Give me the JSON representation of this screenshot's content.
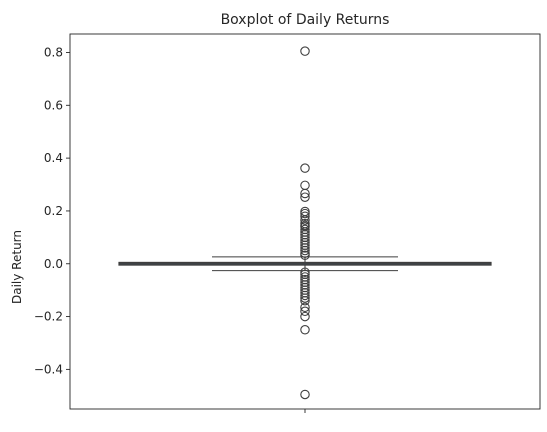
{
  "chart_data": {
    "type": "boxplot",
    "title": "Boxplot of Daily Returns",
    "xlabel": "",
    "ylabel": "Daily Return",
    "ylim": [
      -0.55,
      0.87
    ],
    "yticks": [
      -0.4,
      -0.2,
      0.0,
      0.2,
      0.4,
      0.6,
      0.8
    ],
    "ytick_labels": [
      "−0.4",
      "−0.2",
      "0.0",
      "0.2",
      "0.4",
      "0.6",
      "0.8"
    ],
    "orientation": "vertical",
    "grid": false,
    "box": {
      "q1": -0.005,
      "median": 0.0,
      "q3": 0.005,
      "whisker_low": -0.026,
      "whisker_high": 0.026,
      "fill_color": "#3a5f73",
      "line_color": "#3f3f3f"
    },
    "outliers": [
      0.805,
      0.362,
      0.297,
      0.266,
      0.252,
      0.198,
      0.19,
      0.18,
      0.165,
      0.152,
      0.145,
      0.14,
      0.13,
      0.12,
      0.11,
      0.1,
      0.09,
      0.08,
      0.07,
      0.06,
      0.05,
      0.04,
      0.032,
      -0.032,
      -0.04,
      -0.05,
      -0.06,
      -0.07,
      -0.08,
      -0.09,
      -0.1,
      -0.11,
      -0.12,
      -0.13,
      -0.14,
      -0.165,
      -0.18,
      -0.2,
      -0.25,
      -0.495
    ]
  }
}
